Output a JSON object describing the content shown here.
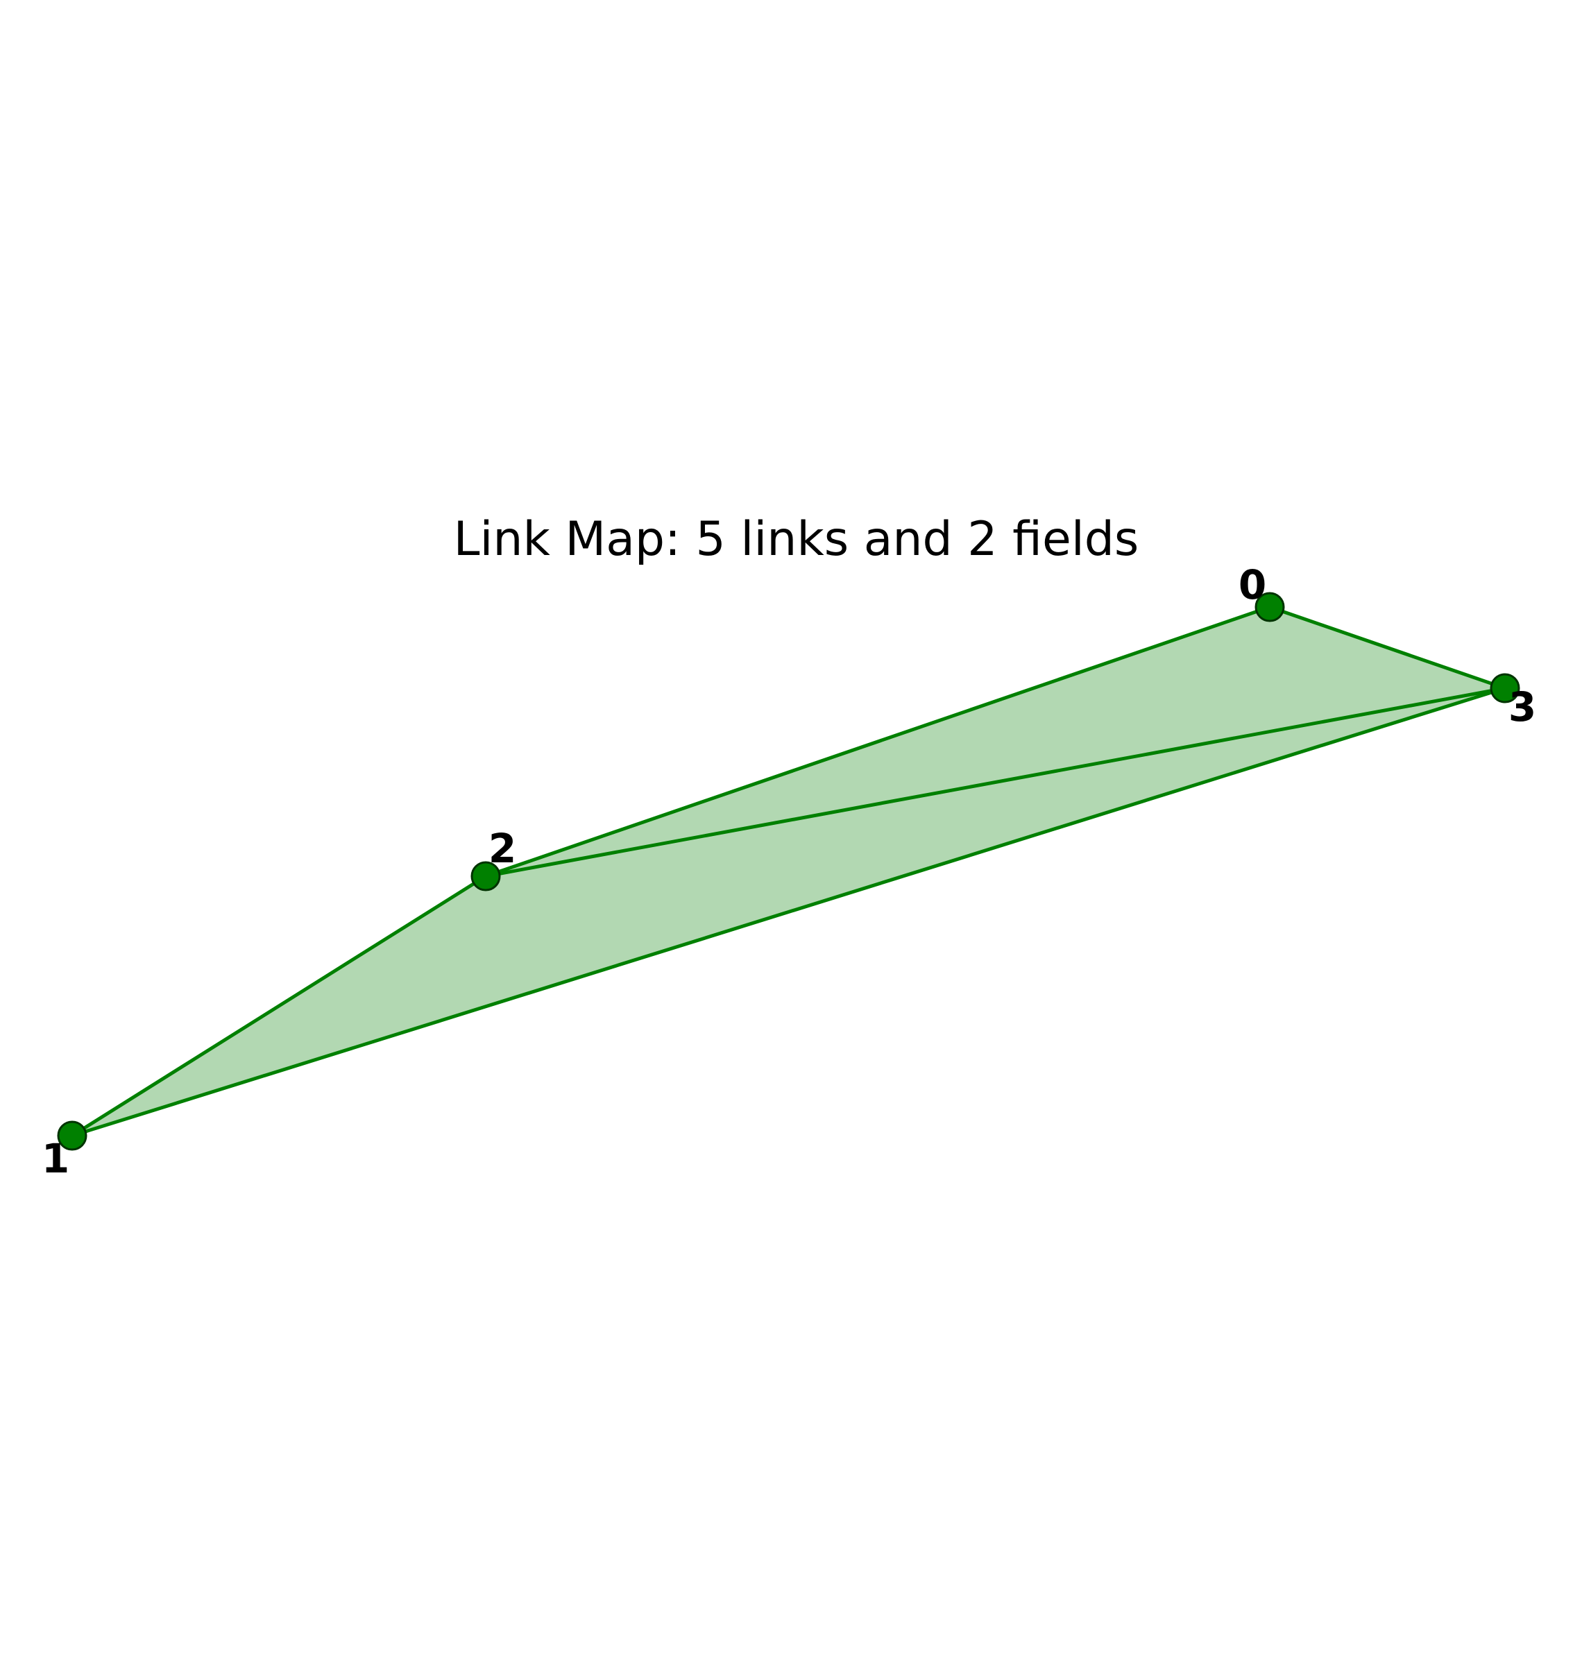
{
  "title": "Link Map: 5 links and 2 fields",
  "colors": {
    "link": "#008000",
    "field_fill": "#b2d8b2",
    "node_fill": "#008000",
    "node_stroke": "#003300",
    "label": "#000000",
    "background": "#ffffff"
  },
  "portals": [
    {
      "id": "0",
      "label": "0"
    },
    {
      "id": "1",
      "label": "1"
    },
    {
      "id": "2",
      "label": "2"
    },
    {
      "id": "3",
      "label": "3"
    }
  ],
  "links": [
    {
      "from": "0",
      "to": "3"
    },
    {
      "from": "0",
      "to": "2"
    },
    {
      "from": "2",
      "to": "3"
    },
    {
      "from": "1",
      "to": "2"
    },
    {
      "from": "1",
      "to": "3"
    }
  ],
  "fields": [
    {
      "vertices": [
        "0",
        "2",
        "3"
      ]
    },
    {
      "vertices": [
        "1",
        "2",
        "3"
      ]
    }
  ]
}
